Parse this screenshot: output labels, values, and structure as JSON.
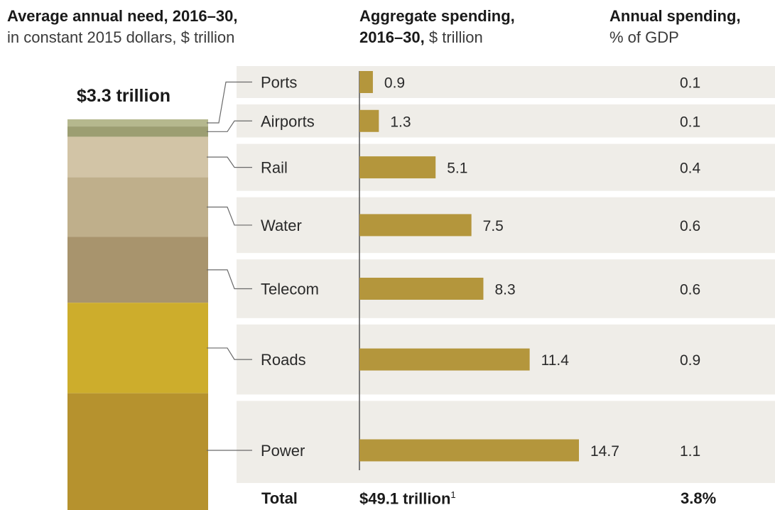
{
  "headers": {
    "need_title": "Average annual need, 2016–30,",
    "need_sub": "in constant 2015 dollars, $ trillion",
    "agg_title": "Aggregate spending,",
    "agg_title2": "2016–30,",
    "agg_unit": "$ trillion",
    "annual_title": "Annual spending,",
    "annual_sub": "% of GDP"
  },
  "stack_total": "$3.3 trillion",
  "totals": {
    "label": "Total",
    "aggregate": "$49.1 trillion",
    "aggregate_footnote": "1",
    "annual_pct": "3.8%"
  },
  "colors": {
    "bar": "#b4963c",
    "row_bg": "#efede8",
    "axis": "#555555",
    "ports": "#b5b88e",
    "airports": "#9c9e72",
    "rail": "#d2c4a6",
    "water": "#bfaf8b",
    "telecom": "#a8946d",
    "roads": "#cdad2c",
    "power": "#b6922e"
  },
  "chart_data": {
    "type": "bar",
    "orientation": "horizontal",
    "categories": [
      "Ports",
      "Airports",
      "Rail",
      "Water",
      "Telecom",
      "Roads",
      "Power"
    ],
    "series": [
      {
        "values": [
          0.9,
          1.3,
          5.1,
          7.5,
          8.3,
          11.4,
          14.7
        ],
        "value_labels": [
          "0.9",
          "1.3",
          "5.1",
          "7.5",
          "8.3",
          "11.4",
          "14.7"
        ]
      }
    ],
    "annual_pct_gdp": [
      "0.1",
      "0.1",
      "0.4",
      "0.6",
      "0.6",
      "0.9",
      "1.1"
    ],
    "xlim": [
      0,
      17.2
    ],
    "stacked_shares": [
      0.9,
      1.3,
      5.1,
      7.5,
      8.3,
      11.4,
      14.7
    ],
    "legend": "none",
    "grid": false
  }
}
